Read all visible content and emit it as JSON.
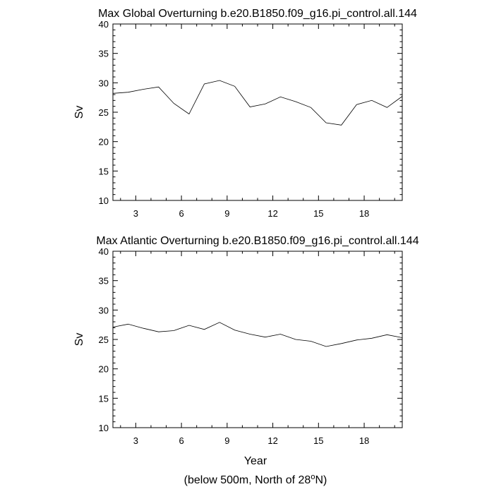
{
  "chart_data": [
    {
      "type": "line",
      "title": "Max Global Overturning b.e20.B1850.f09_g16.pi_control.all.144",
      "ylabel": "Sv",
      "xlabel": "",
      "xlim": [
        1.5,
        20.5
      ],
      "ylim": [
        10,
        40
      ],
      "xticks": [
        3,
        6,
        9,
        12,
        15,
        18
      ],
      "yticks": [
        10,
        15,
        20,
        25,
        30,
        35,
        40
      ],
      "x": [
        1.5,
        2.5,
        3.5,
        4.5,
        5.5,
        6.5,
        7.5,
        8.5,
        9.5,
        10.5,
        11.5,
        12.5,
        13.5,
        14.5,
        15.5,
        16.5,
        17.5,
        18.5,
        19.5,
        20.5
      ],
      "series": [
        {
          "values": [
            28.2,
            28.4,
            28.9,
            29.3,
            26.5,
            24.7,
            29.8,
            30.4,
            29.4,
            25.9,
            26.4,
            27.6,
            26.8,
            25.8,
            23.2,
            22.8,
            26.3,
            27.0,
            25.8,
            27.7
          ]
        }
      ]
    },
    {
      "type": "line",
      "title": "Max Atlantic Overturning b.e20.B1850.f09_g16.pi_control.all.144",
      "ylabel": "Sv",
      "xlabel": "Year",
      "xlim": [
        1.5,
        20.5
      ],
      "ylim": [
        10,
        40
      ],
      "xticks": [
        3,
        6,
        9,
        12,
        15,
        18
      ],
      "yticks": [
        10,
        15,
        20,
        25,
        30,
        35,
        40
      ],
      "x": [
        1.5,
        2.5,
        3.5,
        4.5,
        5.5,
        6.5,
        7.5,
        8.5,
        9.5,
        10.5,
        11.5,
        12.5,
        13.5,
        14.5,
        15.5,
        16.5,
        17.5,
        18.5,
        19.5,
        20.5
      ],
      "series": [
        {
          "values": [
            27.1,
            27.6,
            26.9,
            26.3,
            26.5,
            27.4,
            26.7,
            27.9,
            26.6,
            25.9,
            25.4,
            25.9,
            25.0,
            24.7,
            23.8,
            24.3,
            24.9,
            25.2,
            25.8,
            25.3
          ]
        }
      ]
    }
  ],
  "footnote": {
    "prefix": "(below 500m, North of 28",
    "sup": "o",
    "suffix": "N)"
  }
}
